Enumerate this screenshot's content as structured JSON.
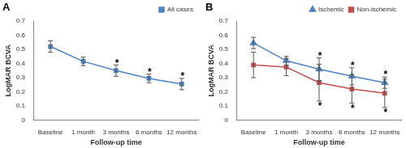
{
  "chart_data": [
    {
      "type": "line",
      "title": "A",
      "x_label": "Follow-up time",
      "y_label": "LogMAR BCVA",
      "categories": [
        "Baseline",
        "1 month",
        "3 months",
        "6 months",
        "12 months"
      ],
      "ylim": [
        0,
        0.7
      ],
      "yticks": [
        0,
        0.1,
        0.2,
        0.3,
        0.4,
        0.5,
        0.6,
        0.7
      ],
      "grid": false,
      "legend": "upper right",
      "series": [
        {
          "name": "All cases",
          "color": "#4f81bd",
          "marker": "square",
          "line_style": "solid",
          "values": [
            0.52,
            0.415,
            0.35,
            0.295,
            0.255
          ],
          "errors": [
            0.04,
            0.03,
            0.04,
            0.03,
            0.04
          ],
          "annotations": [
            {
              "text": "*",
              "category": "3 months",
              "position": "above"
            },
            {
              "text": "*",
              "category": "6 months",
              "position": "above"
            },
            {
              "text": "*",
              "category": "12 months",
              "position": "above"
            }
          ]
        }
      ]
    },
    {
      "type": "line",
      "title": "B",
      "x_label": "Follow-up time",
      "y_label": "LogMAR BCVA",
      "categories": [
        "Baseline",
        "1 month",
        "3 months",
        "6 months",
        "12 months"
      ],
      "ylim": [
        0,
        0.7
      ],
      "yticks": [
        0,
        0.1,
        0.2,
        0.3,
        0.4,
        0.5,
        0.6,
        0.7
      ],
      "grid": false,
      "legend": "upper right",
      "series": [
        {
          "name": "Ischemic",
          "color": "#4f81bd",
          "marker": "triangle",
          "line_style": "solid",
          "values": [
            0.545,
            0.42,
            0.36,
            0.31,
            0.265
          ],
          "errors": [
            0.04,
            0.03,
            0.08,
            0.06,
            0.04
          ],
          "annotations": [
            {
              "text": "*",
              "category": "3 months",
              "position": "above"
            },
            {
              "text": "*",
              "category": "6 months",
              "position": "above"
            },
            {
              "text": "*",
              "category": "12 months",
              "position": "above"
            }
          ]
        },
        {
          "name": "Non-ischemic",
          "color": "#c0504d",
          "marker": "square",
          "line_style": "solid",
          "values": [
            0.39,
            0.375,
            0.265,
            0.22,
            0.19
          ],
          "errors": [
            0.09,
            0.06,
            0.13,
            0.1,
            0.1
          ],
          "annotations": [
            {
              "text": "*",
              "category": "3 months",
              "position": "below"
            },
            {
              "text": "*",
              "category": "6 months",
              "position": "below"
            },
            {
              "text": "*",
              "category": "12 months",
              "position": "below"
            }
          ]
        }
      ]
    }
  ]
}
